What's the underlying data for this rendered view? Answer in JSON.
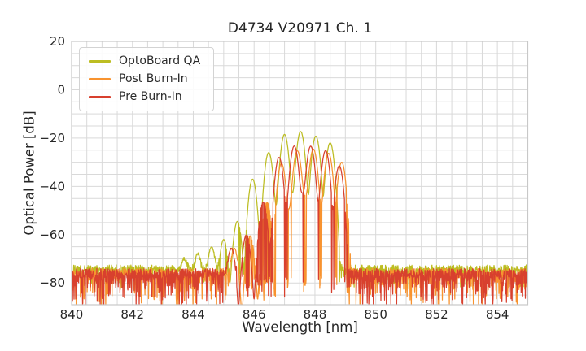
{
  "chart_data": {
    "type": "line",
    "title": "D4734 V20971 Ch. 1",
    "xlabel": "Wavelength [nm]",
    "ylabel": "Optical Power [dB]",
    "xlim": [
      840,
      855
    ],
    "ylim": [
      -89,
      20
    ],
    "x_major_ticks": [
      840,
      842,
      844,
      846,
      848,
      850,
      852,
      854
    ],
    "x_tick_labels": [
      "840",
      "842",
      "844",
      "846",
      "848",
      "850",
      "852",
      "854"
    ],
    "x_minor_step": 0.5,
    "y_major_ticks": [
      20,
      0,
      -20,
      -40,
      -60,
      -80
    ],
    "y_tick_labels": [
      "20",
      "0",
      "−20",
      "−40",
      "−60",
      "−80"
    ],
    "y_minor_step": 5,
    "grid": true,
    "grid_color": "#d9d9d9",
    "frame_color": "#c8c8c8",
    "legend_position": "upper-left",
    "sample_step_nm": 0.01,
    "series": [
      {
        "name": "OptoBoard QA",
        "slug": "optoboard-qa",
        "color": "#bcbd22",
        "seed": 1013904223,
        "mode_width_nm": 0.095,
        "modes": [
          [
            843.7,
            -72
          ],
          [
            844.15,
            -69
          ],
          [
            844.6,
            -65.5
          ],
          [
            845.0,
            -62
          ],
          [
            845.45,
            -54.5
          ],
          [
            845.95,
            -37
          ],
          [
            846.48,
            -26
          ],
          [
            847.0,
            -18.5
          ],
          [
            847.53,
            -17.3
          ],
          [
            848.03,
            -19.2
          ],
          [
            848.5,
            -22
          ],
          [
            847.3,
            -44,
            0.5
          ]
        ],
        "noise_regions": [
          [
            840,
            844.85
          ],
          [
            848.82,
            855
          ]
        ],
        "noise": {
          "base": -74.5,
          "wiggle": 2,
          "dip_prob": 0.35,
          "dip_max": 9,
          "spike_prob": 0.08,
          "spike_ceil": -50,
          "spike_depth": 7
        }
      },
      {
        "name": "Post Burn-In",
        "slug": "post-burn-in",
        "color": "#f8932f",
        "seed": 69069,
        "mode_width_nm": 0.095,
        "modes": [
          [
            845.35,
            -66
          ],
          [
            845.87,
            -60.5
          ],
          [
            846.42,
            -46.5
          ],
          [
            846.9,
            -30.5
          ],
          [
            847.42,
            -25.3
          ],
          [
            847.95,
            -24.6
          ],
          [
            848.45,
            -26.3
          ],
          [
            848.88,
            -30
          ],
          [
            847.68,
            -44,
            0.45
          ]
        ],
        "noise_regions": [
          [
            840,
            845.5
          ],
          [
            849.2,
            855
          ]
        ],
        "noise": {
          "base": -76,
          "wiggle": 2,
          "dip_prob": 0.45,
          "dip_max": 16,
          "spike_prob": 0.3,
          "spike_ceil": -42,
          "spike_depth": 12
        }
      },
      {
        "name": "Pre Burn-In",
        "slug": "pre-burn-in",
        "color": "#d8402e",
        "seed": 362436069,
        "mode_width_nm": 0.095,
        "modes": [
          [
            845.25,
            -66
          ],
          [
            845.75,
            -60
          ],
          [
            846.3,
            -46.5
          ],
          [
            846.82,
            -28
          ],
          [
            847.32,
            -23.3
          ],
          [
            847.86,
            -23.4
          ],
          [
            848.35,
            -25.2
          ],
          [
            848.8,
            -31.5
          ],
          [
            847.6,
            -43,
            0.45
          ]
        ],
        "noise_regions": [
          [
            840,
            845.42
          ],
          [
            849.1,
            855
          ]
        ],
        "noise": {
          "base": -76,
          "wiggle": 2,
          "dip_prob": 0.5,
          "dip_max": 17,
          "spike_prob": 0.3,
          "spike_ceil": -42,
          "spike_depth": 12
        }
      }
    ]
  }
}
